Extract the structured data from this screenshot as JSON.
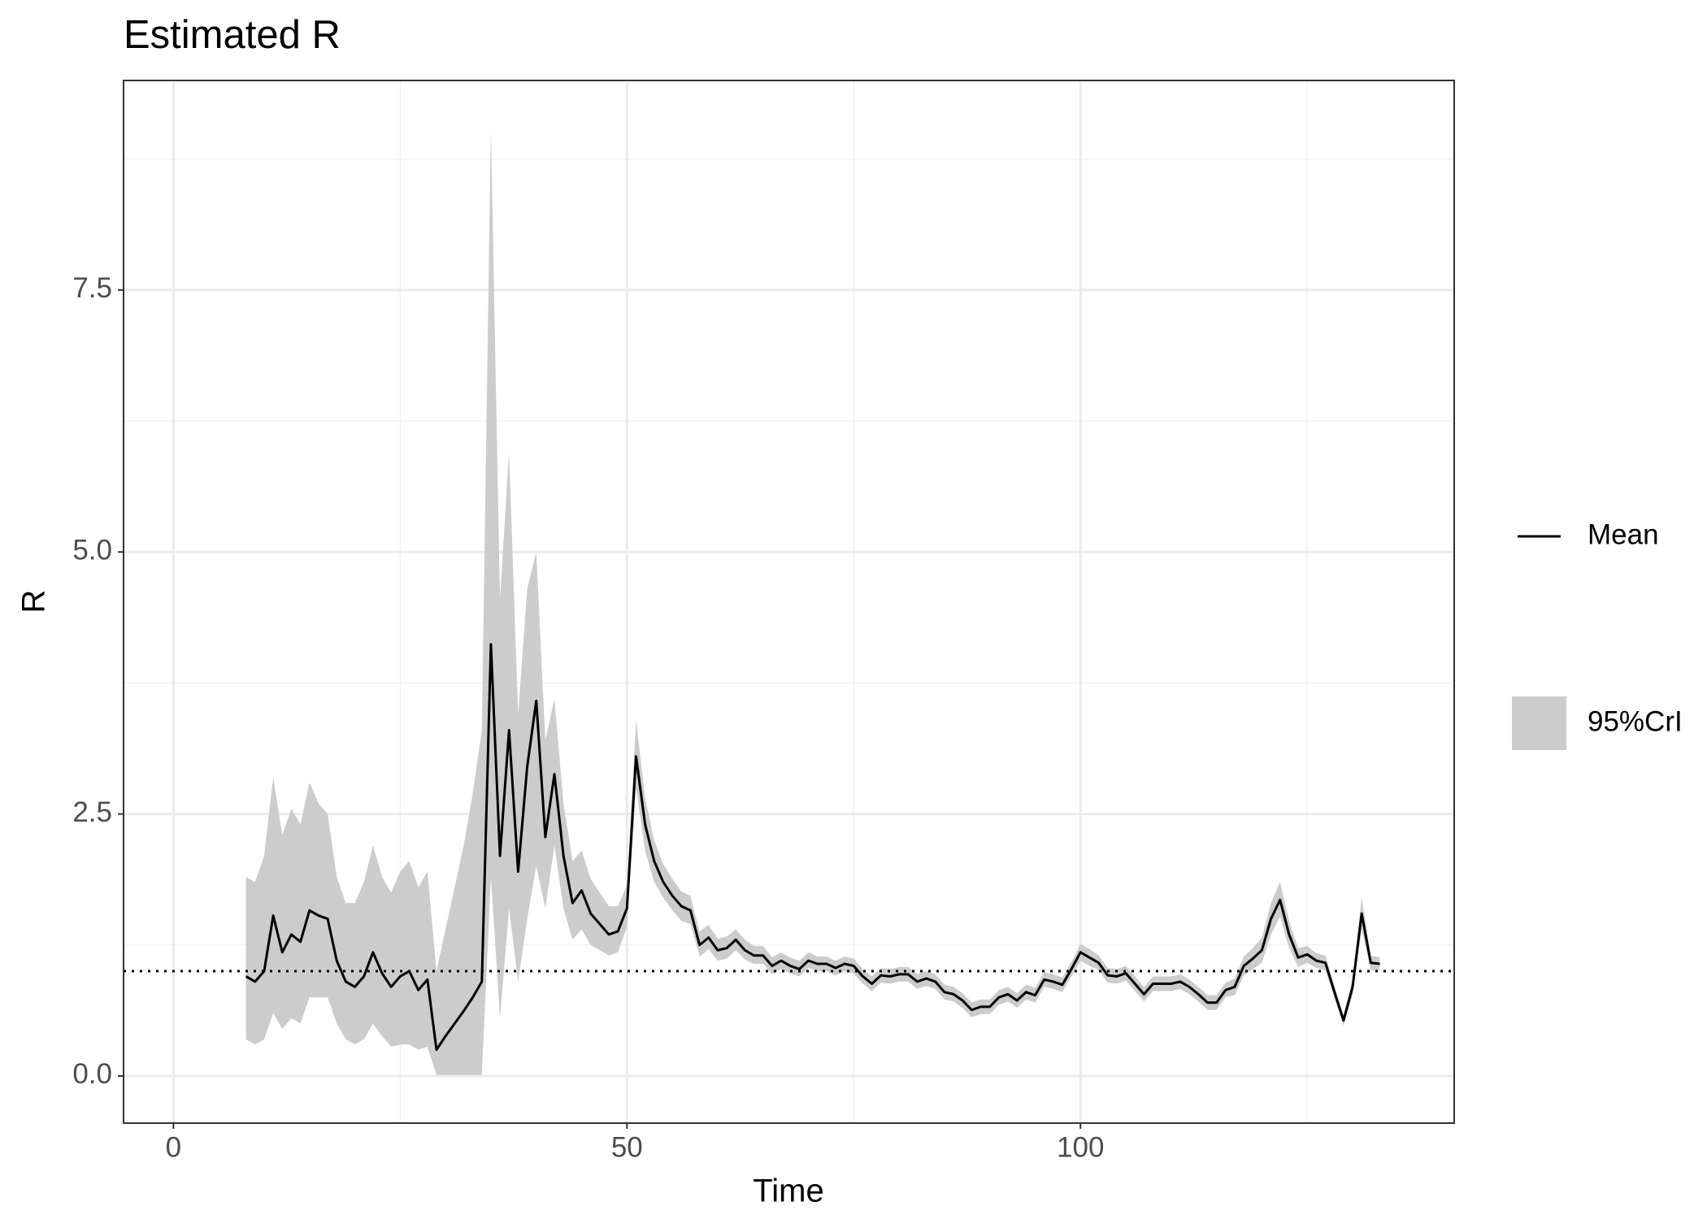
{
  "chart_data": {
    "type": "line",
    "title": "Estimated R",
    "x_label": "Time",
    "y_label": "R",
    "xlim": [
      -5.5,
      141.2
    ],
    "ylim": [
      -0.45,
      9.5
    ],
    "xticks": [
      0,
      50,
      100
    ],
    "yticks": [
      {
        "value": 0,
        "label": "0.0"
      },
      2.5,
      {
        "value": 5,
        "label": "5.0"
      },
      7.5
    ],
    "grid": true,
    "hline": 1,
    "legend": "right",
    "x": [
      8,
      9,
      10,
      11,
      12,
      13,
      14,
      15,
      16,
      17,
      18,
      19,
      20,
      21,
      22,
      23,
      24,
      25,
      26,
      27,
      28,
      29,
      30,
      31,
      32,
      33,
      34,
      35,
      36,
      37,
      38,
      39,
      40,
      41,
      42,
      43,
      44,
      45,
      46,
      47,
      48,
      49,
      50,
      51,
      52,
      53,
      54,
      55,
      56,
      57,
      58,
      59,
      60,
      61,
      62,
      63,
      64,
      65,
      66,
      67,
      68,
      69,
      70,
      71,
      72,
      73,
      74,
      75,
      76,
      77,
      78,
      79,
      80,
      81,
      82,
      83,
      84,
      85,
      86,
      87,
      88,
      89,
      90,
      91,
      92,
      93,
      94,
      95,
      96,
      97,
      98,
      99,
      100,
      101,
      102,
      103,
      104,
      105,
      106,
      107,
      108,
      109,
      110,
      111,
      112,
      113,
      114,
      115,
      116,
      117,
      118,
      119,
      120,
      121,
      122,
      123,
      124,
      125,
      126,
      127,
      128,
      129,
      130,
      131,
      132,
      133
    ],
    "series": [
      {
        "name": "Mean",
        "color": "#000000",
        "values": [
          0.95,
          0.9,
          1.0,
          1.53,
          1.18,
          1.35,
          1.28,
          1.58,
          1.53,
          1.5,
          1.1,
          0.9,
          0.85,
          0.95,
          1.18,
          0.98,
          0.85,
          0.95,
          1.0,
          0.82,
          0.92,
          0.25,
          0.38,
          0.5,
          0.62,
          0.75,
          0.9,
          4.12,
          2.1,
          3.3,
          1.95,
          2.95,
          3.58,
          2.28,
          2.88,
          2.1,
          1.65,
          1.77,
          1.55,
          1.45,
          1.35,
          1.38,
          1.6,
          3.05,
          2.4,
          2.05,
          1.85,
          1.72,
          1.62,
          1.58,
          1.25,
          1.32,
          1.2,
          1.22,
          1.3,
          1.2,
          1.15,
          1.15,
          1.05,
          1.1,
          1.05,
          1.02,
          1.1,
          1.07,
          1.07,
          1.03,
          1.07,
          1.05,
          0.95,
          0.88,
          0.96,
          0.95,
          0.97,
          0.97,
          0.9,
          0.93,
          0.9,
          0.8,
          0.78,
          0.72,
          0.63,
          0.66,
          0.66,
          0.75,
          0.78,
          0.72,
          0.8,
          0.77,
          0.92,
          0.9,
          0.87,
          1.02,
          1.18,
          1.13,
          1.08,
          0.96,
          0.95,
          0.98,
          0.88,
          0.78,
          0.88,
          0.88,
          0.88,
          0.9,
          0.85,
          0.78,
          0.7,
          0.7,
          0.82,
          0.85,
          1.05,
          1.12,
          1.2,
          1.5,
          1.68,
          1.35,
          1.13,
          1.16,
          1.1,
          1.08,
          0.8,
          0.53,
          0.85,
          1.55,
          1.08,
          1.07
        ]
      },
      {
        "name": "95%CrI",
        "color": "#cccccc",
        "upper": [
          1.9,
          1.85,
          2.1,
          2.85,
          2.3,
          2.55,
          2.4,
          2.8,
          2.6,
          2.5,
          1.9,
          1.65,
          1.65,
          1.85,
          2.2,
          1.9,
          1.75,
          1.95,
          2.05,
          1.8,
          1.95,
          1.0,
          1.4,
          1.8,
          2.2,
          2.7,
          3.3,
          9.05,
          4.55,
          5.95,
          3.45,
          4.65,
          5.0,
          3.2,
          3.6,
          2.6,
          2.05,
          2.15,
          1.88,
          1.75,
          1.62,
          1.62,
          1.82,
          3.4,
          2.65,
          2.25,
          2.02,
          1.88,
          1.76,
          1.72,
          1.38,
          1.44,
          1.31,
          1.33,
          1.4,
          1.3,
          1.24,
          1.24,
          1.13,
          1.18,
          1.13,
          1.1,
          1.18,
          1.14,
          1.14,
          1.1,
          1.14,
          1.12,
          1.02,
          0.95,
          1.03,
          1.02,
          1.04,
          1.04,
          0.97,
          1.0,
          0.97,
          0.87,
          0.85,
          0.79,
          0.7,
          0.73,
          0.73,
          0.82,
          0.85,
          0.79,
          0.87,
          0.84,
          0.99,
          0.97,
          0.94,
          1.09,
          1.26,
          1.21,
          1.15,
          1.03,
          1.02,
          1.05,
          0.95,
          0.85,
          0.95,
          0.95,
          0.95,
          0.97,
          0.92,
          0.85,
          0.77,
          0.77,
          0.89,
          0.93,
          1.14,
          1.22,
          1.32,
          1.65,
          1.85,
          1.48,
          1.22,
          1.24,
          1.17,
          1.15,
          0.86,
          0.58,
          0.93,
          1.7,
          1.15,
          1.13
        ],
        "lower": [
          0.35,
          0.3,
          0.35,
          0.6,
          0.45,
          0.55,
          0.5,
          0.75,
          0.75,
          0.75,
          0.5,
          0.35,
          0.3,
          0.35,
          0.5,
          0.38,
          0.28,
          0.3,
          0.3,
          0.25,
          0.28,
          0.01,
          0.01,
          0.01,
          0.01,
          0.01,
          0.01,
          1.9,
          0.55,
          1.6,
          0.9,
          1.5,
          2.0,
          1.6,
          2.2,
          1.6,
          1.3,
          1.4,
          1.25,
          1.2,
          1.15,
          1.18,
          1.42,
          2.75,
          2.15,
          1.85,
          1.7,
          1.58,
          1.48,
          1.45,
          1.14,
          1.21,
          1.1,
          1.12,
          1.2,
          1.11,
          1.07,
          1.07,
          0.97,
          1.02,
          0.98,
          0.95,
          1.03,
          1.0,
          1.0,
          0.96,
          1.0,
          0.98,
          0.88,
          0.81,
          0.89,
          0.88,
          0.9,
          0.9,
          0.83,
          0.86,
          0.83,
          0.73,
          0.71,
          0.65,
          0.56,
          0.59,
          0.59,
          0.68,
          0.71,
          0.65,
          0.73,
          0.7,
          0.85,
          0.83,
          0.8,
          0.95,
          1.1,
          1.05,
          1.01,
          0.89,
          0.88,
          0.91,
          0.81,
          0.71,
          0.81,
          0.81,
          0.81,
          0.83,
          0.78,
          0.71,
          0.63,
          0.63,
          0.75,
          0.77,
          0.96,
          1.02,
          1.08,
          1.35,
          1.52,
          1.22,
          1.04,
          1.08,
          1.03,
          1.01,
          0.74,
          0.48,
          0.77,
          1.4,
          1.01,
          1.01
        ]
      }
    ]
  }
}
